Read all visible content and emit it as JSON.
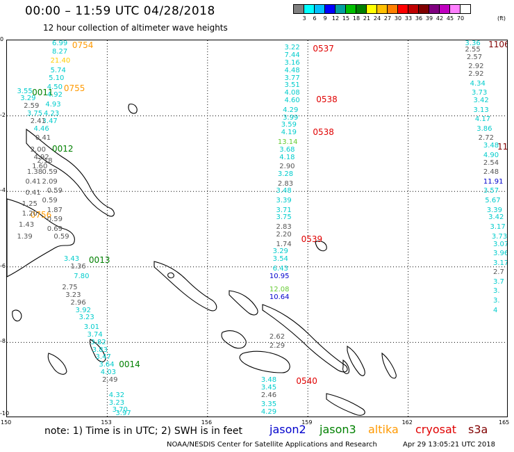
{
  "header": {
    "title": "00:00 – 11:59 UTC 04/28/2018",
    "subtitle": "12 hour collection of altimeter wave heights"
  },
  "colorbar": {
    "unit": "(ft)",
    "colors": [
      "#808080",
      "#00ffff",
      "#00bfff",
      "#0000ff",
      "#00a0a0",
      "#00c000",
      "#008000",
      "#ffff00",
      "#ffc000",
      "#ff8000",
      "#ff0000",
      "#c00000",
      "#800000",
      "#800080",
      "#c000c0",
      "#ff80ff",
      "#ffffff"
    ],
    "ticks": [
      "3",
      "6",
      "9",
      "12",
      "15",
      "18",
      "21",
      "24",
      "27",
      "30",
      "33",
      "36",
      "39",
      "42",
      "45",
      "70"
    ]
  },
  "axes": {
    "y_ticks": [
      "0",
      "-2",
      "-4",
      "-6",
      "-8",
      "-10"
    ],
    "x_ticks": [
      "150",
      "153",
      "156",
      "159",
      "162",
      "165"
    ],
    "xlim": [
      150,
      165
    ],
    "ylim": [
      -10,
      0
    ]
  },
  "tracks": [
    {
      "satellite": "altika",
      "color": "#ff9900",
      "lon": 151.95,
      "lat": -0.05,
      "time": "0754"
    },
    {
      "satellite": "altika",
      "color": "#ff9900",
      "lon": 151.7,
      "lat": -1.2,
      "time": "0755"
    },
    {
      "satellite": "altika",
      "color": "#ff9900",
      "lon": 150.7,
      "lat": -4.55,
      "time": "0756"
    },
    {
      "satellite": "jason3",
      "color": "#008000",
      "lon": 150.75,
      "lat": -1.3,
      "time": "0011"
    },
    {
      "satellite": "jason3",
      "color": "#008000",
      "lon": 151.35,
      "lat": -2.8,
      "time": "0012"
    },
    {
      "satellite": "jason3",
      "color": "#008000",
      "lon": 152.45,
      "lat": -5.75,
      "time": "0013"
    },
    {
      "satellite": "jason3",
      "color": "#008000",
      "lon": 153.35,
      "lat": -8.5,
      "time": "0014"
    },
    {
      "satellite": "cryosat",
      "color": "#e00000",
      "lon": 159.15,
      "lat": -0.15,
      "time": "0537"
    },
    {
      "satellite": "cryosat",
      "color": "#e00000",
      "lon": 159.25,
      "lat": -1.5,
      "time": "0538"
    },
    {
      "satellite": "cryosat",
      "color": "#e00000",
      "lon": 159.15,
      "lat": -2.35,
      "time": "0538"
    },
    {
      "satellite": "cryosat",
      "color": "#e00000",
      "lon": 158.8,
      "lat": -5.2,
      "time": "0539"
    },
    {
      "satellite": "cryosat",
      "color": "#e00000",
      "lon": 158.65,
      "lat": -8.95,
      "time": "0540"
    },
    {
      "satellite": "s3a",
      "color": "#800000",
      "lon": 164.4,
      "lat": 0.0,
      "time": "1106"
    },
    {
      "satellite": "s3a",
      "color": "#800000",
      "lon": 164.85,
      "lat": -2.75,
      "time": "11"
    }
  ],
  "observations": [
    {
      "lon": 151.35,
      "lat": 0.0,
      "value": "6.99",
      "color": "#00cccc"
    },
    {
      "lon": 151.35,
      "lat": -0.25,
      "value": "8.27",
      "color": "#00cccc"
    },
    {
      "lon": 151.3,
      "lat": -0.5,
      "value": "21.40",
      "color": "#ffcc00"
    },
    {
      "lon": 151.3,
      "lat": -0.75,
      "value": "5.74",
      "color": "#00cccc"
    },
    {
      "lon": 151.25,
      "lat": -0.95,
      "value": "5.10",
      "color": "#00cccc"
    },
    {
      "lon": 151.2,
      "lat": -1.2,
      "value": "4.50",
      "color": "#00cccc"
    },
    {
      "lon": 151.2,
      "lat": -1.4,
      "value": "4.92",
      "color": "#00cccc"
    },
    {
      "lon": 151.15,
      "lat": -1.65,
      "value": "4.93",
      "color": "#00cccc"
    },
    {
      "lon": 151.1,
      "lat": -1.9,
      "value": "4.23",
      "color": "#00cccc"
    },
    {
      "lon": 151.05,
      "lat": -2.1,
      "value": "3.47",
      "color": "#00cccc"
    },
    {
      "lon": 150.3,
      "lat": -1.3,
      "value": "3.55",
      "color": "#00cccc"
    },
    {
      "lon": 150.4,
      "lat": -1.5,
      "value": "3.29",
      "color": "#00cccc"
    },
    {
      "lon": 150.5,
      "lat": -1.7,
      "value": "2.59",
      "color": "#555555"
    },
    {
      "lon": 150.6,
      "lat": -1.9,
      "value": "3.75",
      "color": "#00cccc"
    },
    {
      "lon": 150.7,
      "lat": -2.1,
      "value": "2.41",
      "color": "#555555"
    },
    {
      "lon": 150.8,
      "lat": -2.3,
      "value": "4.46",
      "color": "#00cccc"
    },
    {
      "lon": 150.85,
      "lat": -2.55,
      "value": "0.41",
      "color": "#555555"
    },
    {
      "lon": 150.7,
      "lat": -2.85,
      "value": "2.00",
      "color": "#555555"
    },
    {
      "lon": 150.8,
      "lat": -3.05,
      "value": "4.92",
      "color": "#555555"
    },
    {
      "lon": 150.9,
      "lat": -3.15,
      "value": "2.18",
      "color": "#555555"
    },
    {
      "lon": 150.75,
      "lat": -3.3,
      "value": "1.60",
      "color": "#555555"
    },
    {
      "lon": 150.6,
      "lat": -3.45,
      "value": "1.38",
      "color": "#555555"
    },
    {
      "lon": 151.05,
      "lat": -3.45,
      "value": "0.59",
      "color": "#555555"
    },
    {
      "lon": 151.05,
      "lat": -3.7,
      "value": "2.09",
      "color": "#555555"
    },
    {
      "lon": 150.55,
      "lat": -3.7,
      "value": "0.41",
      "color": "#555555"
    },
    {
      "lon": 151.2,
      "lat": -3.95,
      "value": "0.59",
      "color": "#555555"
    },
    {
      "lon": 150.55,
      "lat": -4.0,
      "value": "0.41",
      "color": "#555555"
    },
    {
      "lon": 151.05,
      "lat": -4.2,
      "value": "0.59",
      "color": "#555555"
    },
    {
      "lon": 150.45,
      "lat": -4.3,
      "value": "1.25",
      "color": "#555555"
    },
    {
      "lon": 151.2,
      "lat": -4.45,
      "value": "1.87",
      "color": "#555555"
    },
    {
      "lon": 150.45,
      "lat": -4.55,
      "value": "1.20",
      "color": "#555555"
    },
    {
      "lon": 151.2,
      "lat": -4.7,
      "value": "0.59",
      "color": "#555555"
    },
    {
      "lon": 150.35,
      "lat": -4.85,
      "value": "1.43",
      "color": "#555555"
    },
    {
      "lon": 151.2,
      "lat": -4.95,
      "value": "0.69",
      "color": "#555555"
    },
    {
      "lon": 150.3,
      "lat": -5.15,
      "value": "1.39",
      "color": "#555555"
    },
    {
      "lon": 151.4,
      "lat": -5.15,
      "value": "0.59",
      "color": "#555555"
    },
    {
      "lon": 151.7,
      "lat": -5.75,
      "value": "3.43",
      "color": "#00cccc"
    },
    {
      "lon": 151.9,
      "lat": -5.95,
      "value": "1.36",
      "color": "#555555"
    },
    {
      "lon": 152.0,
      "lat": -6.2,
      "value": "7.80",
      "color": "#00cccc"
    },
    {
      "lon": 151.65,
      "lat": -6.5,
      "value": "2.75",
      "color": "#555555"
    },
    {
      "lon": 151.75,
      "lat": -6.7,
      "value": "3.23",
      "color": "#555555"
    },
    {
      "lon": 151.9,
      "lat": -6.9,
      "value": "2.96",
      "color": "#555555"
    },
    {
      "lon": 152.05,
      "lat": -7.1,
      "value": "3.92",
      "color": "#00cccc"
    },
    {
      "lon": 152.15,
      "lat": -7.3,
      "value": "3.23",
      "color": "#00cccc"
    },
    {
      "lon": 152.3,
      "lat": -7.55,
      "value": "3.01",
      "color": "#00cccc"
    },
    {
      "lon": 152.4,
      "lat": -7.75,
      "value": "3.74",
      "color": "#00cccc"
    },
    {
      "lon": 152.5,
      "lat": -7.95,
      "value": "3.82",
      "color": "#00cccc"
    },
    {
      "lon": 152.55,
      "lat": -8.15,
      "value": "3.83",
      "color": "#00cccc"
    },
    {
      "lon": 152.65,
      "lat": -8.35,
      "value": "3.47",
      "color": "#00cccc"
    },
    {
      "lon": 152.75,
      "lat": -8.55,
      "value": "3.64",
      "color": "#00cccc"
    },
    {
      "lon": 152.8,
      "lat": -8.75,
      "value": "4.03",
      "color": "#00cccc"
    },
    {
      "lon": 152.85,
      "lat": -8.95,
      "value": "2.49",
      "color": "#555555"
    },
    {
      "lon": 153.05,
      "lat": -9.35,
      "value": "4.32",
      "color": "#00cccc"
    },
    {
      "lon": 153.05,
      "lat": -9.55,
      "value": "3.23",
      "color": "#00cccc"
    },
    {
      "lon": 153.15,
      "lat": -9.75,
      "value": "3.70",
      "color": "#00cccc"
    },
    {
      "lon": 153.25,
      "lat": -9.95,
      "value": "3.97",
      "color": "#00cccc"
    },
    {
      "lon": 158.3,
      "lat": -0.15,
      "value": "3.22",
      "color": "#00cccc"
    },
    {
      "lon": 158.3,
      "lat": -0.35,
      "value": "7.44",
      "color": "#00cccc"
    },
    {
      "lon": 158.3,
      "lat": -0.55,
      "value": "3.16",
      "color": "#00cccc"
    },
    {
      "lon": 158.3,
      "lat": -0.75,
      "value": "4.48",
      "color": "#00cccc"
    },
    {
      "lon": 158.3,
      "lat": -0.95,
      "value": "3.77",
      "color": "#00cccc"
    },
    {
      "lon": 158.3,
      "lat": -1.15,
      "value": "3.51",
      "color": "#00cccc"
    },
    {
      "lon": 158.3,
      "lat": -1.35,
      "value": "4.08",
      "color": "#00cccc"
    },
    {
      "lon": 158.3,
      "lat": -1.55,
      "value": "4.60",
      "color": "#00cccc"
    },
    {
      "lon": 158.25,
      "lat": -1.8,
      "value": "4.29",
      "color": "#00cccc"
    },
    {
      "lon": 158.25,
      "lat": -2.0,
      "value": "3.99",
      "color": "#00cccc"
    },
    {
      "lon": 158.2,
      "lat": -2.2,
      "value": "3.59",
      "color": "#00cccc"
    },
    {
      "lon": 158.2,
      "lat": -2.4,
      "value": "4.19",
      "color": "#00cccc"
    },
    {
      "lon": 158.1,
      "lat": -2.65,
      "value": "13.14",
      "color": "#66cc33"
    },
    {
      "lon": 158.15,
      "lat": -2.85,
      "value": "3.68",
      "color": "#00cccc"
    },
    {
      "lon": 158.15,
      "lat": -3.05,
      "value": "4.18",
      "color": "#00cccc"
    },
    {
      "lon": 158.15,
      "lat": -3.3,
      "value": "2.90",
      "color": "#555555"
    },
    {
      "lon": 158.1,
      "lat": -3.5,
      "value": "3.28",
      "color": "#00cccc"
    },
    {
      "lon": 158.1,
      "lat": -3.75,
      "value": "2.83",
      "color": "#555555"
    },
    {
      "lon": 158.05,
      "lat": -3.95,
      "value": "3.48",
      "color": "#00cccc"
    },
    {
      "lon": 158.05,
      "lat": -4.2,
      "value": "3.39",
      "color": "#00cccc"
    },
    {
      "lon": 158.05,
      "lat": -4.45,
      "value": "3.71",
      "color": "#00cccc"
    },
    {
      "lon": 158.05,
      "lat": -4.65,
      "value": "3.75",
      "color": "#00cccc"
    },
    {
      "lon": 158.05,
      "lat": -4.9,
      "value": "2.83",
      "color": "#555555"
    },
    {
      "lon": 158.05,
      "lat": -5.1,
      "value": "2.20",
      "color": "#555555"
    },
    {
      "lon": 158.05,
      "lat": -5.35,
      "value": "1.74",
      "color": "#555555"
    },
    {
      "lon": 157.95,
      "lat": -5.55,
      "value": "3.29",
      "color": "#00cccc"
    },
    {
      "lon": 157.95,
      "lat": -5.75,
      "value": "3.54",
      "color": "#00cccc"
    },
    {
      "lon": 157.95,
      "lat": -6.0,
      "value": "6.43",
      "color": "#00cccc"
    },
    {
      "lon": 157.85,
      "lat": -6.2,
      "value": "10.95",
      "color": "#0000cc"
    },
    {
      "lon": 157.85,
      "lat": -6.55,
      "value": "12.08",
      "color": "#66cc33"
    },
    {
      "lon": 157.85,
      "lat": -6.75,
      "value": "10.64",
      "color": "#0000cc"
    },
    {
      "lon": 157.85,
      "lat": -7.8,
      "value": "2.62",
      "color": "#555555"
    },
    {
      "lon": 157.85,
      "lat": -8.05,
      "value": "2.29",
      "color": "#555555"
    },
    {
      "lon": 157.6,
      "lat": -8.95,
      "value": "3.48",
      "color": "#00cccc"
    },
    {
      "lon": 157.6,
      "lat": -9.15,
      "value": "3.45",
      "color": "#00cccc"
    },
    {
      "lon": 157.6,
      "lat": -9.35,
      "value": "2.46",
      "color": "#555555"
    },
    {
      "lon": 157.6,
      "lat": -9.6,
      "value": "3.35",
      "color": "#00cccc"
    },
    {
      "lon": 157.6,
      "lat": -9.8,
      "value": "4.29",
      "color": "#00cccc"
    },
    {
      "lon": 163.7,
      "lat": 0.0,
      "value": "3.36",
      "color": "#00cccc"
    },
    {
      "lon": 163.7,
      "lat": -0.2,
      "value": "2.55",
      "color": "#555555"
    },
    {
      "lon": 163.75,
      "lat": -0.4,
      "value": "2.57",
      "color": "#555555"
    },
    {
      "lon": 163.8,
      "lat": -0.65,
      "value": "2.92",
      "color": "#555555"
    },
    {
      "lon": 163.8,
      "lat": -0.85,
      "value": "2.92",
      "color": "#555555"
    },
    {
      "lon": 163.85,
      "lat": -1.1,
      "value": "4.34",
      "color": "#00cccc"
    },
    {
      "lon": 163.9,
      "lat": -1.35,
      "value": "3.73",
      "color": "#00cccc"
    },
    {
      "lon": 163.95,
      "lat": -1.55,
      "value": "3.42",
      "color": "#00cccc"
    },
    {
      "lon": 163.95,
      "lat": -1.8,
      "value": "3.13",
      "color": "#00cccc"
    },
    {
      "lon": 164.0,
      "lat": -2.05,
      "value": "4.17",
      "color": "#00cccc"
    },
    {
      "lon": 164.05,
      "lat": -2.3,
      "value": "3.86",
      "color": "#00cccc"
    },
    {
      "lon": 164.1,
      "lat": -2.55,
      "value": "2.72",
      "color": "#555555"
    },
    {
      "lon": 164.25,
      "lat": -2.75,
      "value": "3.48",
      "color": "#00cccc"
    },
    {
      "lon": 164.25,
      "lat": -3.0,
      "value": "4.90",
      "color": "#00cccc"
    },
    {
      "lon": 164.25,
      "lat": -3.2,
      "value": "2.54",
      "color": "#555555"
    },
    {
      "lon": 164.25,
      "lat": -3.45,
      "value": "2.48",
      "color": "#555555"
    },
    {
      "lon": 164.25,
      "lat": -3.7,
      "value": "11.91",
      "color": "#0000cc"
    },
    {
      "lon": 164.25,
      "lat": -3.95,
      "value": "3.57",
      "color": "#00cccc"
    },
    {
      "lon": 164.3,
      "lat": -4.2,
      "value": "5.67",
      "color": "#00cccc"
    },
    {
      "lon": 164.35,
      "lat": -4.45,
      "value": "3.39",
      "color": "#00cccc"
    },
    {
      "lon": 164.4,
      "lat": -4.65,
      "value": "3.42",
      "color": "#00cccc"
    },
    {
      "lon": 164.45,
      "lat": -4.9,
      "value": "3.17",
      "color": "#00cccc"
    },
    {
      "lon": 164.5,
      "lat": -5.15,
      "value": "3.73",
      "color": "#00cccc"
    },
    {
      "lon": 164.55,
      "lat": -5.35,
      "value": "3.07",
      "color": "#00cccc"
    },
    {
      "lon": 164.65,
      "lat": -5.6,
      "value": "3.96",
      "color": "#00cccc"
    },
    {
      "lon": 164.75,
      "lat": -5.85,
      "value": "3.17",
      "color": "#00cccc"
    },
    {
      "lon": 164.8,
      "lat": -6.1,
      "value": "2.7",
      "color": "#555555"
    },
    {
      "lon": 164.85,
      "lat": -6.35,
      "value": "3.7",
      "color": "#00cccc"
    },
    {
      "lon": 164.9,
      "lat": -6.6,
      "value": "3.",
      "color": "#00cccc"
    },
    {
      "lon": 164.9,
      "lat": -6.85,
      "value": "3.",
      "color": "#00cccc"
    },
    {
      "lon": 164.95,
      "lat": -7.1,
      "value": "4",
      "color": "#00cccc"
    }
  ],
  "footer": {
    "note": "note: 1) Time is in UTC; 2) SWH is in feet",
    "legend": [
      {
        "name": "jason2",
        "color": "#0000cc"
      },
      {
        "name": "jason3",
        "color": "#008000"
      },
      {
        "name": "altika",
        "color": "#ff9900"
      },
      {
        "name": "cryosat",
        "color": "#e00000"
      },
      {
        "name": "s3a",
        "color": "#800000"
      }
    ],
    "credit": "NOAA/NESDIS Center for Satellite Applications and Research",
    "timestamp": "Apr 29 13:05:21 UTC 2018"
  }
}
